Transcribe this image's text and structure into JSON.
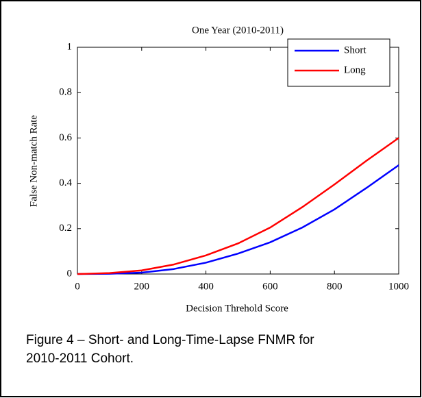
{
  "chart_data": {
    "type": "line",
    "title": "One Year (2010-2011)",
    "xlabel": "Decision Threhold Score",
    "ylabel": "False Non-match Rate",
    "x": [
      0,
      100,
      200,
      300,
      400,
      500,
      600,
      700,
      800,
      900,
      1000
    ],
    "series": [
      {
        "name": "Short",
        "color": "#0000ff",
        "values": [
          0,
          0.001,
          0.006,
          0.022,
          0.05,
          0.09,
          0.14,
          0.205,
          0.285,
          0.38,
          0.48
        ]
      },
      {
        "name": "Long",
        "color": "#ff0000",
        "values": [
          0,
          0.004,
          0.016,
          0.042,
          0.082,
          0.135,
          0.205,
          0.295,
          0.395,
          0.5,
          0.6
        ]
      }
    ],
    "xlim": [
      0,
      1000
    ],
    "xticks": [
      0,
      200,
      400,
      600,
      800,
      1000
    ],
    "ylim": [
      0,
      1
    ],
    "yticks": [
      0,
      0.2,
      0.4,
      0.6,
      0.8,
      1
    ],
    "legend": "upper right",
    "caption": [
      "Figure 4 – Short- and Long-Time-Lapse FNMR for",
      "2010-2011 Cohort."
    ]
  }
}
